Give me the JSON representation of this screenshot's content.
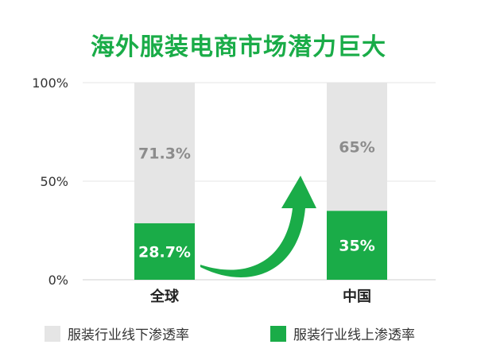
{
  "chart_data": {
    "type": "bar",
    "stacked": true,
    "title": "海外服装电商市场潜力巨大",
    "categories": [
      "全球",
      "中国"
    ],
    "series": [
      {
        "name": "服装行业线上渗透率",
        "values": [
          28.7,
          35
        ],
        "labels": [
          "28.7%",
          "35%"
        ],
        "color": "#1aac48"
      },
      {
        "name": "服装行业线下渗透率",
        "values": [
          71.3,
          65
        ],
        "labels": [
          "71.3%",
          "65%"
        ],
        "color": "#e5e5e5"
      }
    ],
    "yticks": [
      "0%",
      "50%",
      "100%"
    ],
    "ylim": [
      0,
      100
    ],
    "grid": true,
    "legend": {
      "position": "bottom",
      "order": [
        "服装行业线下渗透率",
        "服装行业线上渗透率"
      ]
    },
    "annotation": "green curved arrow rising from 全球 bar to 中国 bar"
  },
  "colors": {
    "title": "#1aac48",
    "online": "#1aac48",
    "offline": "#e5e5e5",
    "offline_label": "#8c8c8c",
    "online_label": "#ffffff",
    "arrow": "#1aac48",
    "grid": "#e6e6e6"
  }
}
